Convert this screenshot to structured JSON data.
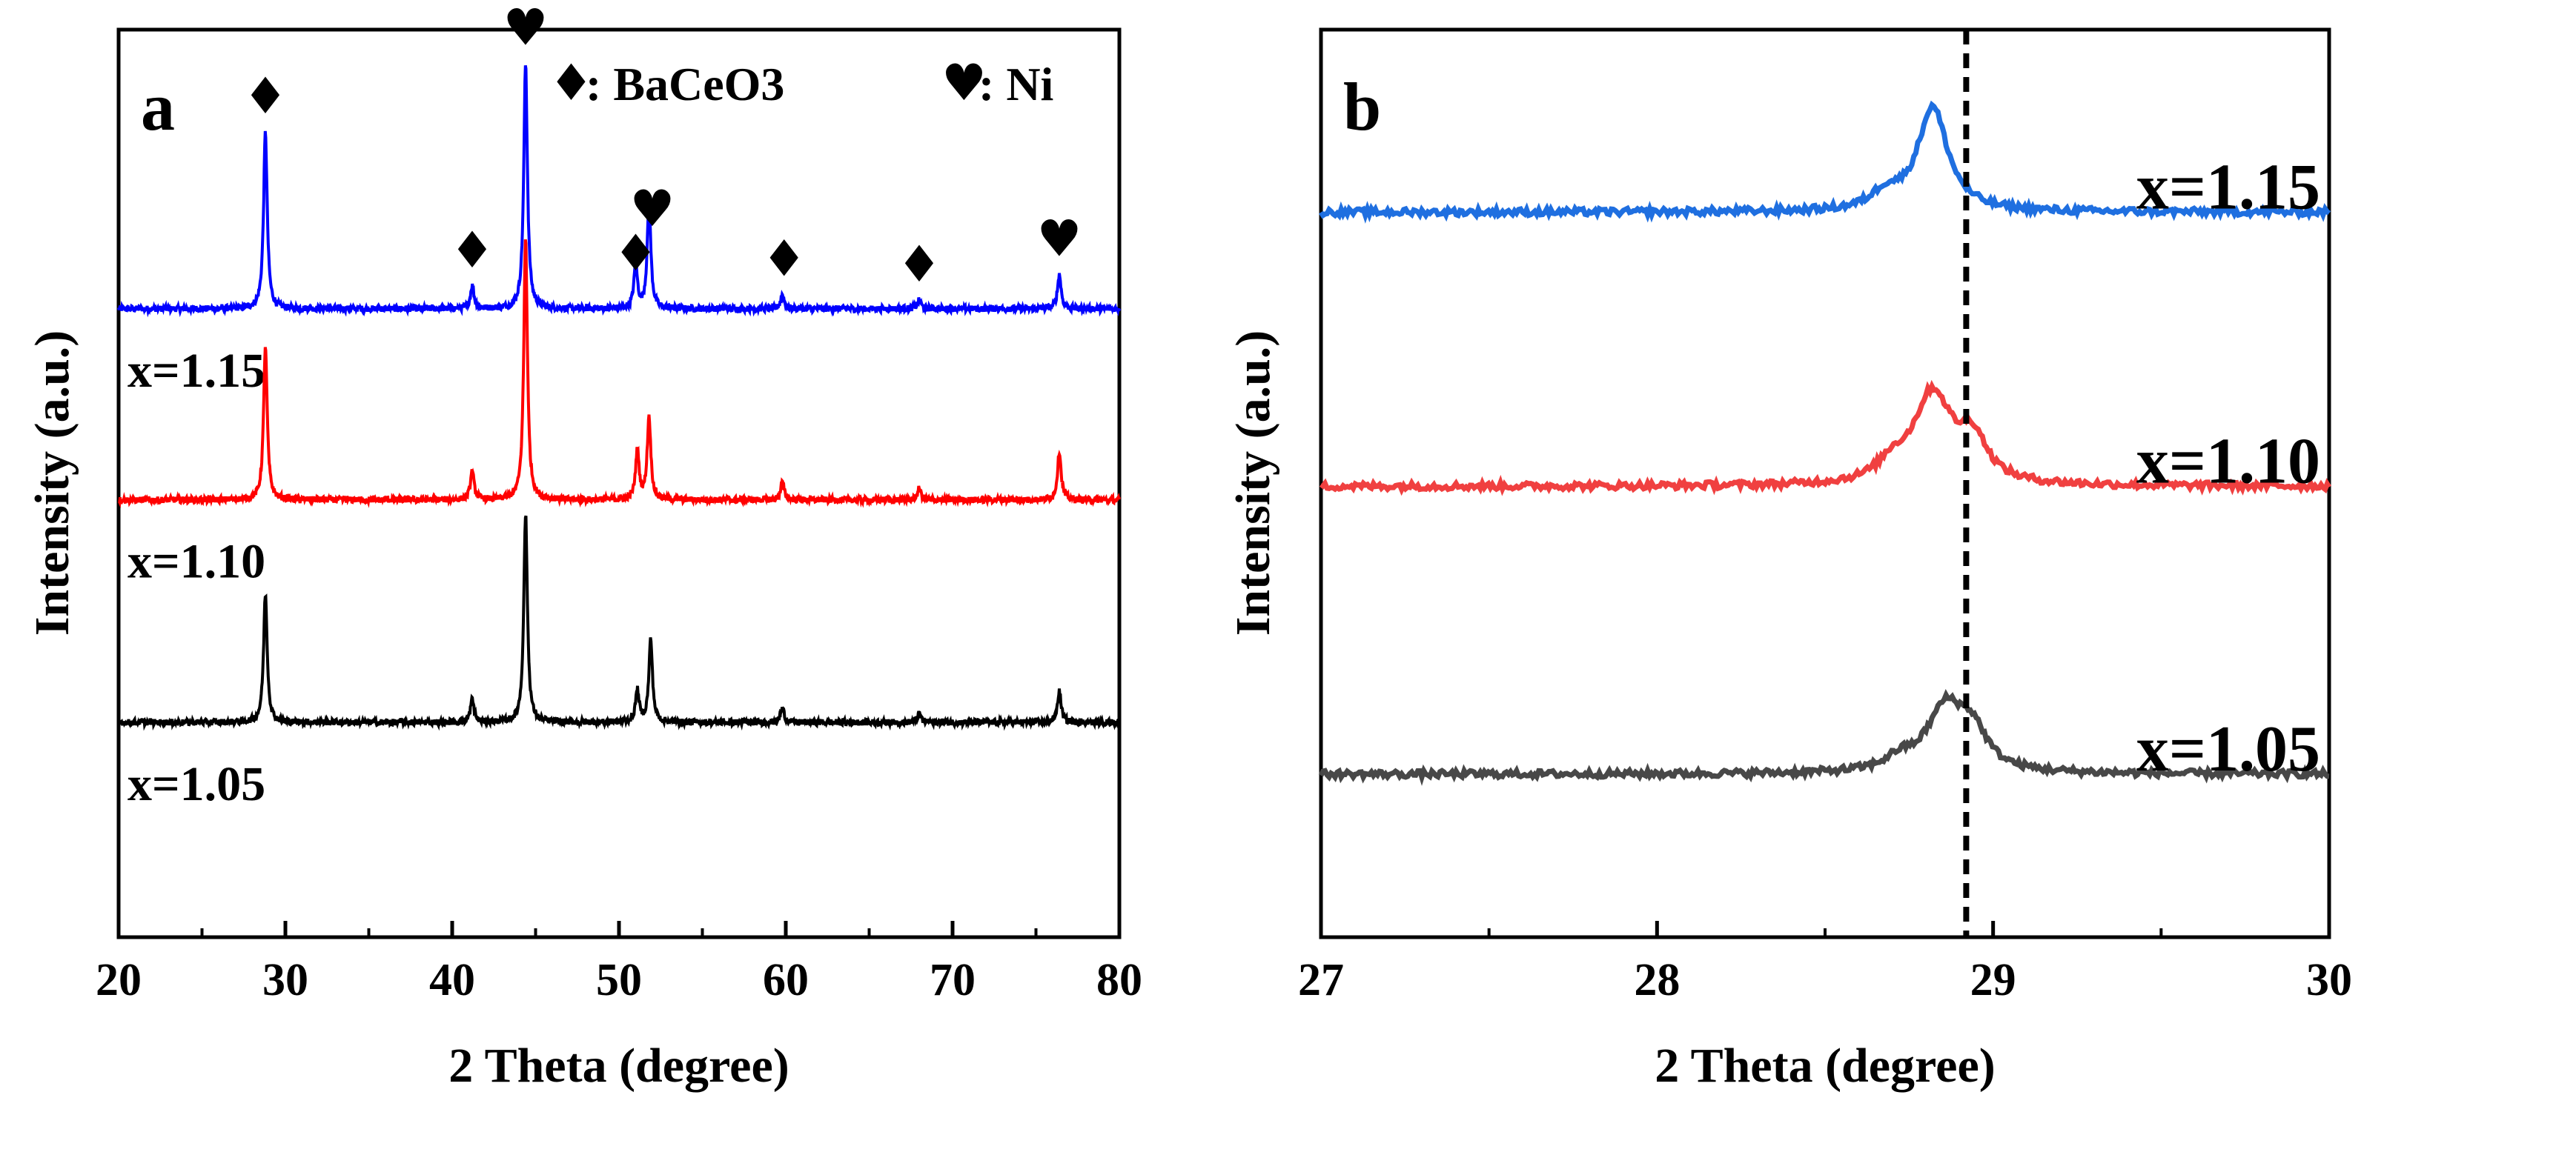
{
  "chart_data": [
    {
      "type": "line",
      "panel_label": "a",
      "xlabel": "2 Theta (degree)",
      "ylabel": "Intensity (a.u.)",
      "xlim": [
        20,
        80
      ],
      "xticks": [
        20,
        30,
        40,
        50,
        60,
        70,
        80
      ],
      "legend_text": [
        {
          "symbol": "♦",
          "text": ":  BaCeO3"
        },
        {
          "symbol": "♥",
          "text": ":  Ni"
        }
      ],
      "markers": [
        {
          "symbol": "♦",
          "x": 28.8
        },
        {
          "symbol": "♥",
          "x": 44.4
        },
        {
          "symbol": "♦",
          "x": 41.2
        },
        {
          "symbol": "♦",
          "x": 51.0
        },
        {
          "symbol": "♥",
          "x": 52.0
        },
        {
          "symbol": "♦",
          "x": 59.9
        },
        {
          "symbol": "♦",
          "x": 68.0
        },
        {
          "symbol": "♥",
          "x": 76.4
        }
      ],
      "series": [
        {
          "name": "x=1.15",
          "color": "#0000ff",
          "offset": 1.45,
          "peaks": [
            [
              28.8,
              0.62
            ],
            [
              41.2,
              0.08
            ],
            [
              44.4,
              0.86
            ],
            [
              51.0,
              0.15
            ],
            [
              51.8,
              0.37
            ],
            [
              59.8,
              0.05
            ],
            [
              68.0,
              0.03
            ],
            [
              76.4,
              0.12
            ]
          ]
        },
        {
          "name": "x=1.10",
          "color": "#ff0000",
          "offset": 0.78,
          "peaks": [
            [
              28.8,
              0.54
            ],
            [
              41.2,
              0.1
            ],
            [
              44.4,
              0.92
            ],
            [
              51.1,
              0.17
            ],
            [
              51.8,
              0.29
            ],
            [
              59.8,
              0.06
            ],
            [
              68.0,
              0.04
            ],
            [
              76.4,
              0.17
            ]
          ]
        },
        {
          "name": "x=1.05",
          "color": "#000000",
          "offset": 0.0,
          "peaks": [
            [
              28.8,
              0.45
            ],
            [
              41.2,
              0.08
            ],
            [
              44.4,
              0.73
            ],
            [
              51.1,
              0.11
            ],
            [
              51.9,
              0.29
            ],
            [
              59.8,
              0.05
            ],
            [
              68.0,
              0.03
            ],
            [
              76.4,
              0.11
            ]
          ]
        }
      ]
    },
    {
      "type": "line",
      "panel_label": "b",
      "xlabel": "2 Theta (degree)",
      "ylabel": "Intensity (a.u.)",
      "xlim": [
        27,
        30
      ],
      "xticks": [
        27,
        28,
        29,
        30
      ],
      "reference_line_x": 28.92,
      "series": [
        {
          "name": "x=1.15",
          "color": "#1f6fe0",
          "offset": 2.05,
          "peaks": [
            [
              28.82,
              0.38,
              0.055
            ],
            [
              28.68,
              0.06,
              0.05
            ]
          ]
        },
        {
          "name": "x=1.10",
          "color": "#f04040",
          "offset": 1.05,
          "peaks": [
            [
              28.82,
              0.33,
              0.07
            ],
            [
              28.94,
              0.15,
              0.05
            ],
            [
              28.7,
              0.06,
              0.05
            ]
          ]
        },
        {
          "name": "x=1.05",
          "color": "#484848",
          "offset": 0.0,
          "peaks": [
            [
              28.86,
              0.24,
              0.07
            ],
            [
              28.94,
              0.12,
              0.05
            ],
            [
              28.72,
              0.04,
              0.05
            ]
          ]
        }
      ]
    }
  ]
}
